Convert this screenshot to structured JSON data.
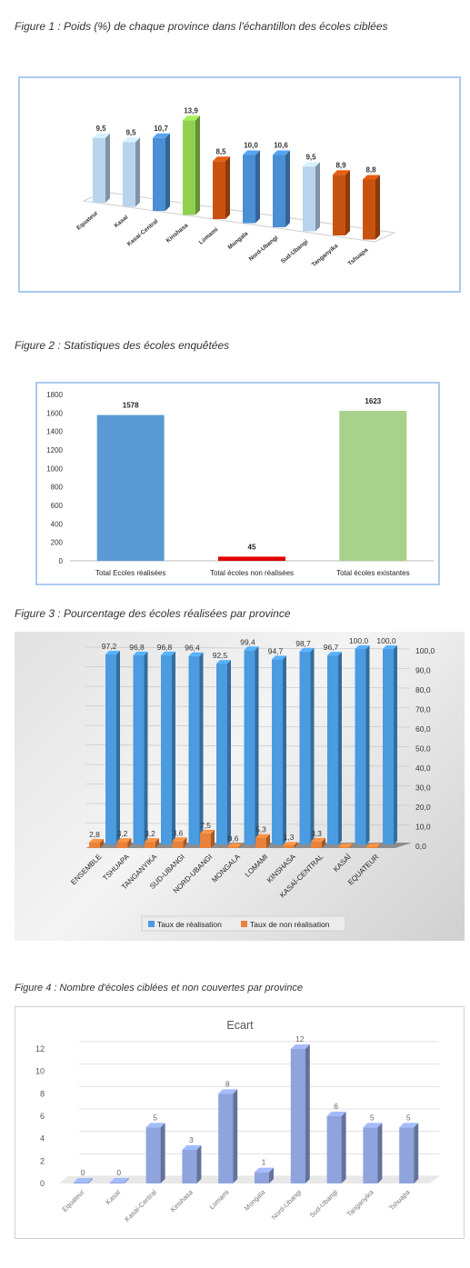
{
  "captions": {
    "fig1": "Figure 1 : Poids (%) de chaque province dans l'échantillon des écoles ciblées",
    "fig2": "Figure 2 : Statistiques des écoles enquêtées",
    "fig3": "Figure 3 : Pourcentage des écoles réalisées par province",
    "fig4": "Figure 4 : Nombre d'écoles ciblées et non couvertes par province"
  },
  "chart_data": [
    {
      "type": "bar",
      "style": "3d-column",
      "categories": [
        "Equateur",
        "Kasaï",
        "Kasaï-Central",
        "Kinshasa",
        "Lomami",
        "Mongala",
        "Nord-Ubangi",
        "Sud-Ubangi",
        "Tanganyika",
        "Tshuapa"
      ],
      "values": [
        9.5,
        9.5,
        10.7,
        13.9,
        8.5,
        10.0,
        10.6,
        9.5,
        8.9,
        8.8
      ],
      "data_labels": [
        "9,5",
        "9,5",
        "10,7",
        "13,9",
        "8,5",
        "10,0",
        "10,6",
        "9,5",
        "8,9",
        "8,8"
      ],
      "colors": [
        "#b8d3ec",
        "#b8d3ec",
        "#4a8fd4",
        "#8fd14f",
        "#c8520f",
        "#4a8fd4",
        "#4a8fd4",
        "#b8d3ec",
        "#c8520f",
        "#c8520f"
      ],
      "grid": false,
      "border_color": "#9ec5ea"
    },
    {
      "type": "bar",
      "categories": [
        "Total Ecoles réalisées",
        "Total écoles non réalisées",
        "Total écoles existantes"
      ],
      "values": [
        1578,
        45,
        1623
      ],
      "data_labels": [
        "1578",
        "45",
        "1623"
      ],
      "colors": [
        "#5b9bd5",
        "#e00000",
        "#a9d18e"
      ],
      "ylim": [
        0,
        1800
      ],
      "yticks": [
        "0",
        "200",
        "400",
        "600",
        "800",
        "1000",
        "1200",
        "1400",
        "1600",
        "1800"
      ],
      "grid": false,
      "border_color": "#9ec5ea"
    },
    {
      "type": "bar",
      "style": "3d-column",
      "categories": [
        "ENSEMBLE",
        "TSHUAPA",
        "TANGANYIKA",
        "SUD-UBANGI",
        "NORD-UBANGI",
        "MONGALA",
        "LOMAMI",
        "KINSHASA",
        "KASAÏ-CENTRAL",
        "KASAÏ",
        "EQUATEUR"
      ],
      "series": [
        {
          "name": "Taux de réalisation",
          "values": [
            97.2,
            96.8,
            96.8,
            96.4,
            92.5,
            99.4,
            94.7,
            98.7,
            96.7,
            100.0,
            100.0
          ],
          "data_labels": [
            "97,2",
            "96,8",
            "96,8",
            "96,4",
            "92,5",
            "99,4",
            "94,7",
            "98,7",
            "96,7",
            "100,0",
            "100,0"
          ],
          "color": "#4a9be0"
        },
        {
          "name": "Taux de non réalisation",
          "values": [
            2.8,
            3.2,
            3.2,
            3.6,
            7.5,
            0.6,
            5.3,
            1.3,
            3.3,
            0.0,
            0.0
          ],
          "data_labels": [
            "2,8",
            "3,2",
            "3,2",
            "3,6",
            "7,5",
            "0,6",
            "5,3",
            "1,3",
            "3,3",
            "",
            ""
          ],
          "color": "#e8813a"
        }
      ],
      "ylim": [
        0,
        100
      ],
      "yticks": [
        "0,0",
        "10,0",
        "20,0",
        "30,0",
        "40,0",
        "50,0",
        "60,0",
        "70,0",
        "80,0",
        "90,0",
        "100,0"
      ],
      "y_axis_side": "right",
      "grid": true,
      "legend": "bottom",
      "background": "gray-gradient"
    },
    {
      "type": "bar",
      "style": "3d-column",
      "title": "Ecart",
      "categories": [
        "Equateur",
        "Kasaï",
        "Kasaï-Central",
        "Kinshasa",
        "Lomami",
        "Mongala",
        "Nord-Ubangi",
        "Sud-Ubangi",
        "Tanganyika",
        "Tshuapa"
      ],
      "values": [
        0,
        0,
        5,
        3,
        8,
        1,
        12,
        6,
        5,
        5
      ],
      "data_labels": [
        "0",
        "0",
        "5",
        "3",
        "8",
        "1",
        "12",
        "6",
        "5",
        "5"
      ],
      "ylim": [
        0,
        12
      ],
      "yticks": [
        "0",
        "2",
        "4",
        "6",
        "8",
        "10",
        "12"
      ],
      "grid": true,
      "color": "#8fa3dd",
      "border_color": "#d0d0d0"
    }
  ]
}
